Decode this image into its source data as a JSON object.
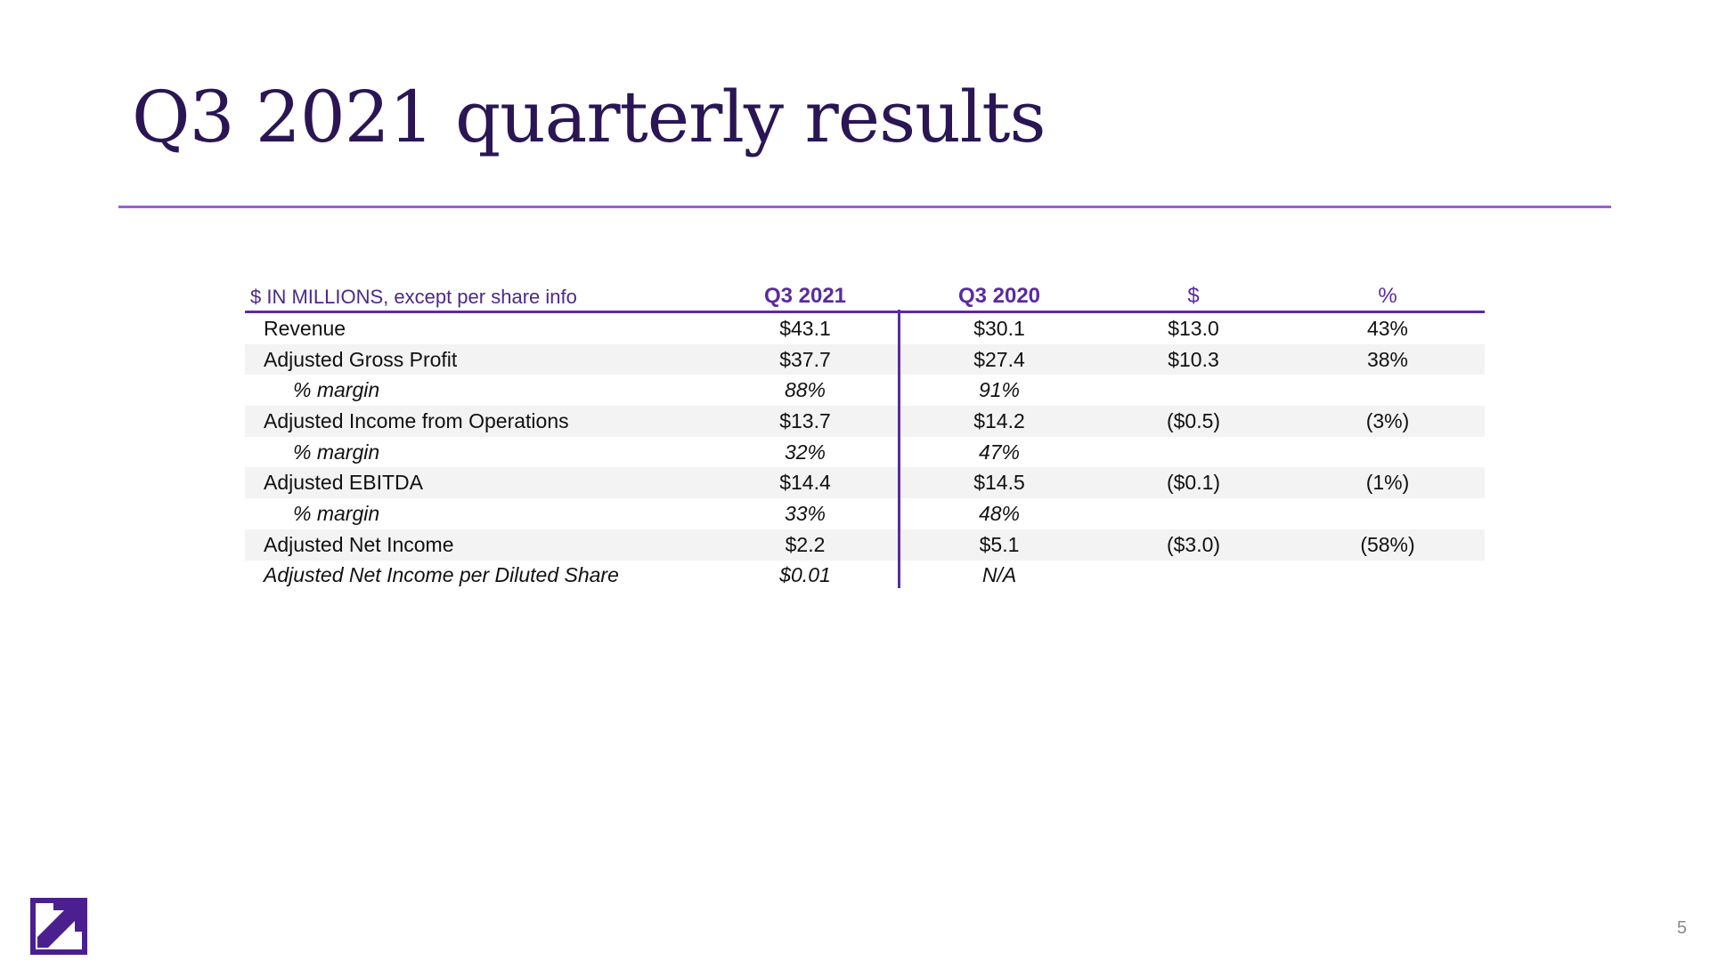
{
  "slide": {
    "title": "Q3 2021 quarterly results",
    "page_number": "5",
    "accent_color": "#5b2ba0",
    "title_color": "#2a1654"
  },
  "table": {
    "header": {
      "unit_label": "$ IN MILLIONS, except per share info",
      "col1": "Q3 2021",
      "col2": "Q3 2020",
      "col3": "$",
      "col4": "%"
    },
    "rows": [
      {
        "label": "Revenue",
        "q3_2021": "$43.1",
        "q3_2020": "$30.1",
        "change_usd": "$13.0",
        "change_pct": "43%"
      },
      {
        "label": "Adjusted Gross Profit",
        "q3_2021": "$37.7",
        "q3_2020": "$27.4",
        "change_usd": "$10.3",
        "change_pct": "38%"
      },
      {
        "label": "% margin",
        "q3_2021": "88%",
        "q3_2020": "91%",
        "change_usd": "",
        "change_pct": ""
      },
      {
        "label": "Adjusted Income from Operations",
        "q3_2021": "$13.7",
        "q3_2020": "$14.2",
        "change_usd": "($0.5)",
        "change_pct": "(3%)"
      },
      {
        "label": "% margin",
        "q3_2021": "32%",
        "q3_2020": "47%",
        "change_usd": "",
        "change_pct": ""
      },
      {
        "label": "Adjusted EBITDA",
        "q3_2021": "$14.4",
        "q3_2020": "$14.5",
        "change_usd": "($0.1)",
        "change_pct": "(1%)"
      },
      {
        "label": "% margin",
        "q3_2021": "33%",
        "q3_2020": "48%",
        "change_usd": "",
        "change_pct": ""
      },
      {
        "label": "Adjusted Net Income",
        "q3_2021": "$2.2",
        "q3_2020": "$5.1",
        "change_usd": "($3.0)",
        "change_pct": "(58%)"
      },
      {
        "label": "Adjusted Net Income per Diluted Share",
        "q3_2021": "$0.01",
        "q3_2020": "N/A",
        "change_usd": "",
        "change_pct": ""
      }
    ]
  },
  "logo": {
    "icon": "arrow-up-right-logo-icon"
  }
}
